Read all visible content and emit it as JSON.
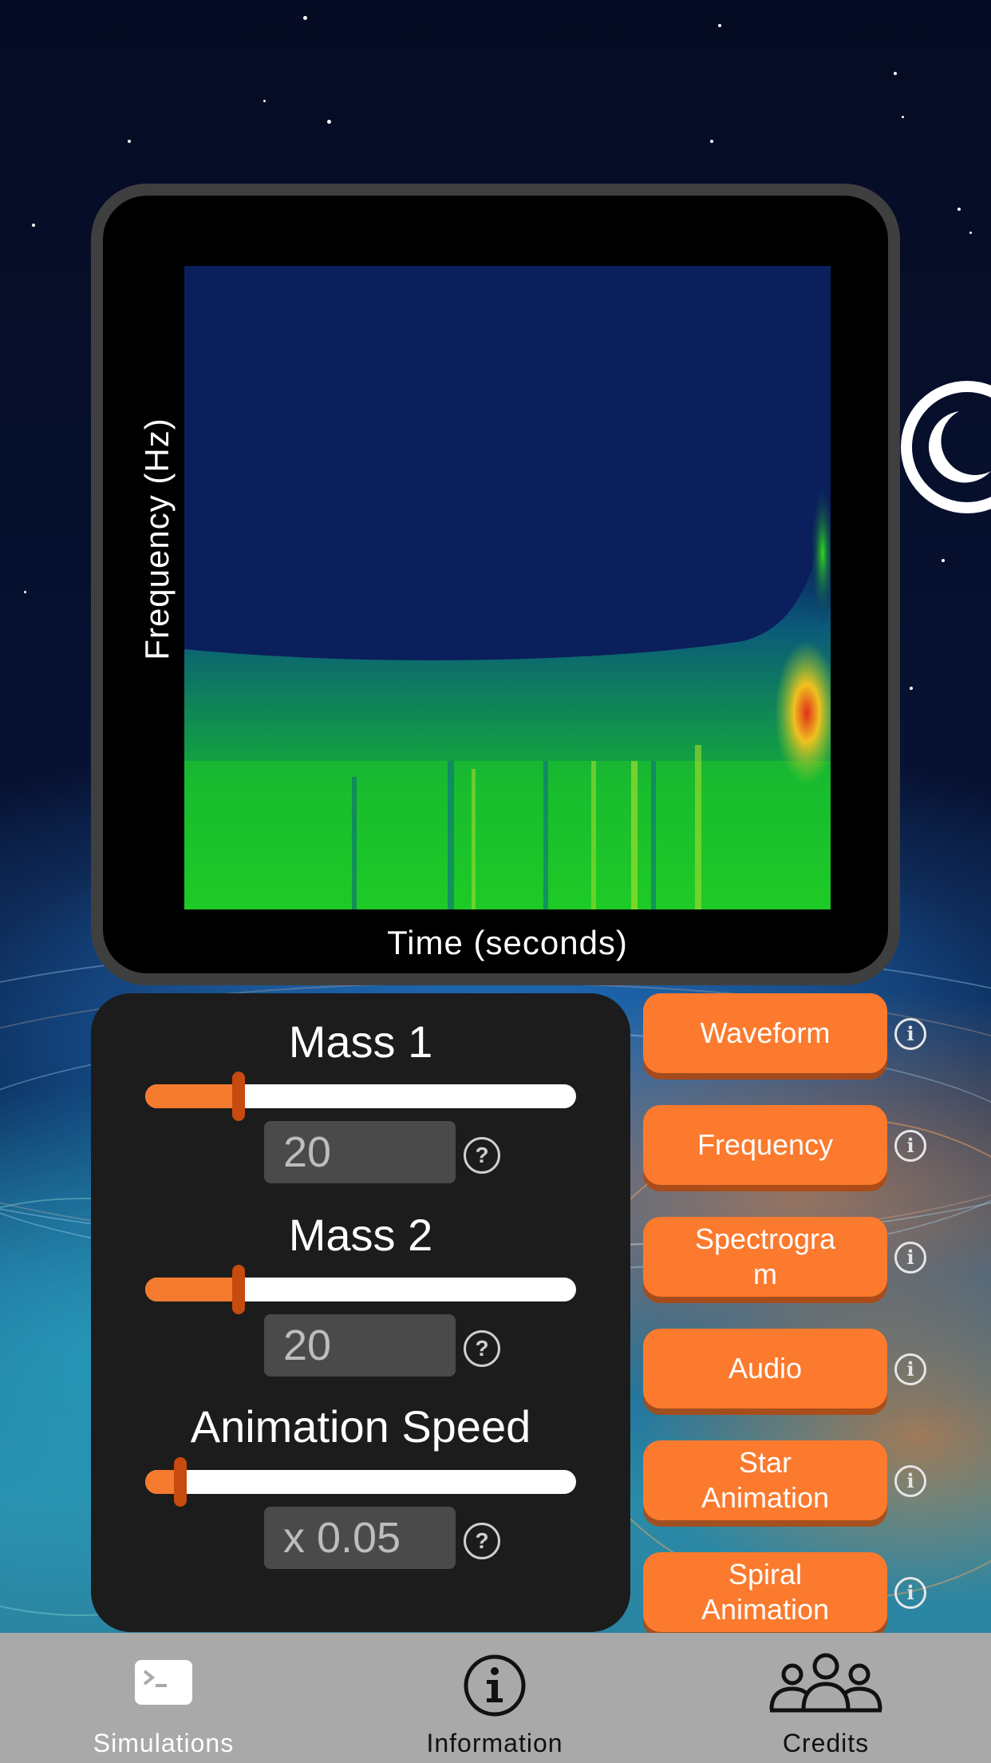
{
  "chart": {
    "ylabel": "Frequency (Hz)",
    "xlabel": "Time (seconds)"
  },
  "controls": {
    "mass1": {
      "title": "Mass 1",
      "value": "20",
      "level": 0.2
    },
    "mass2": {
      "title": "Mass 2",
      "value": "20",
      "level": 0.2
    },
    "speed": {
      "title": "Animation Speed",
      "value": "x 0.05",
      "level": 0.05
    },
    "help_icon": "?"
  },
  "buttons": [
    {
      "label": "Waveform"
    },
    {
      "label": "Frequency"
    },
    {
      "label": "Spectrogra\nm"
    },
    {
      "label": "Audio"
    },
    {
      "label": "Star\nAnimation"
    },
    {
      "label": "Spiral\nAnimation"
    }
  ],
  "info_icon": "i",
  "tabs": [
    {
      "label": "Simulations",
      "icon": "terminal-icon"
    },
    {
      "label": "Information",
      "icon": "info-circle-icon"
    },
    {
      "label": "Credits",
      "icon": "people-icon"
    }
  ],
  "colors": {
    "accent": "#fb7a2e",
    "tab_active": "#ffffff",
    "tab_inactive": "#111111",
    "panel": "#1c1c1c"
  }
}
